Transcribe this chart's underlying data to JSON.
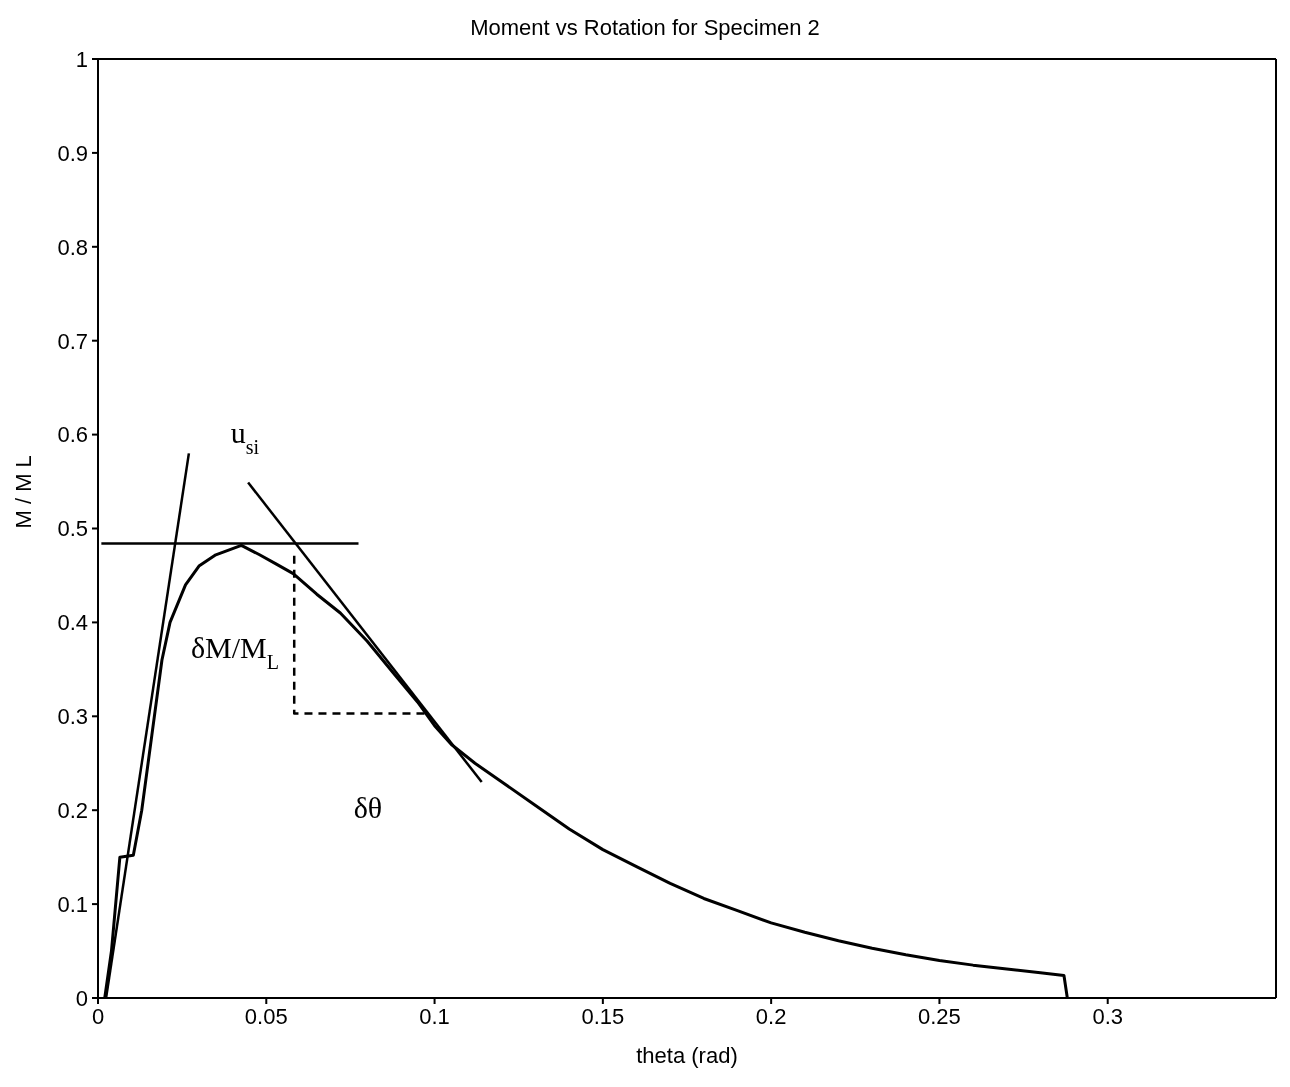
{
  "chart_data": {
    "type": "line",
    "title": "Moment vs Rotation for Specimen 2",
    "xlabel": "theta (rad)",
    "ylabel": "M / M L",
    "xlim": [
      0,
      0.35
    ],
    "xticks": [
      0,
      0.05,
      0.1,
      0.15,
      0.2,
      0.25,
      0.3
    ],
    "ylim": [
      0,
      1
    ],
    "yticks": [
      0,
      0.1,
      0.2,
      0.3,
      0.4,
      0.5,
      0.6,
      0.7,
      0.8,
      0.9,
      1
    ],
    "grid": false,
    "legend": false,
    "marker": "none",
    "series": [
      {
        "color": "#000000",
        "line_style": "solid",
        "x": [
          0.002,
          0.004,
          0.0065,
          0.0105,
          0.013,
          0.016,
          0.019,
          0.0214,
          0.026,
          0.03,
          0.035,
          0.0426,
          0.048,
          0.053,
          0.058,
          0.065,
          0.072,
          0.08,
          0.088,
          0.095,
          0.1,
          0.105,
          0.112,
          0.12,
          0.13,
          0.14,
          0.15,
          0.16,
          0.17,
          0.18,
          0.19,
          0.2,
          0.21,
          0.22,
          0.23,
          0.24,
          0.25,
          0.26,
          0.27,
          0.28,
          0.287,
          0.288
        ],
        "values": [
          0,
          0.05,
          0.15,
          0.152,
          0.2,
          0.28,
          0.36,
          0.4,
          0.44,
          0.46,
          0.472,
          0.482,
          0.472,
          0.462,
          0.452,
          0.43,
          0.41,
          0.38,
          0.345,
          0.315,
          0.29,
          0.27,
          0.25,
          0.23,
          0.205,
          0.18,
          0.158,
          0.14,
          0.122,
          0.106,
          0.093,
          0.08,
          0.07,
          0.061,
          0.053,
          0.046,
          0.04,
          0.035,
          0.031,
          0.027,
          0.024,
          0
        ]
      },
      {
        "color": "#000000",
        "line_style": "solid",
        "x": [
          0.0024,
          0.027
        ],
        "values": [
          0,
          0.58
        ]
      },
      {
        "color": "#000000",
        "line_style": "solid",
        "x": [
          0.001,
          0.0774
        ],
        "values": [
          0.484,
          0.484
        ]
      },
      {
        "color": "#000000",
        "line_style": "solid",
        "x": [
          0.0446,
          0.114
        ],
        "values": [
          0.549,
          0.23
        ]
      },
      {
        "color": "#000000",
        "line_style": "dashed",
        "x": [
          0.0583,
          0.0583,
          0.0976
        ],
        "values": [
          0.471,
          0.303,
          0.303
        ]
      }
    ],
    "annotations": [
      "u$_{si}$",
      "δM/M$_{L}$",
      "δθ"
    ]
  }
}
